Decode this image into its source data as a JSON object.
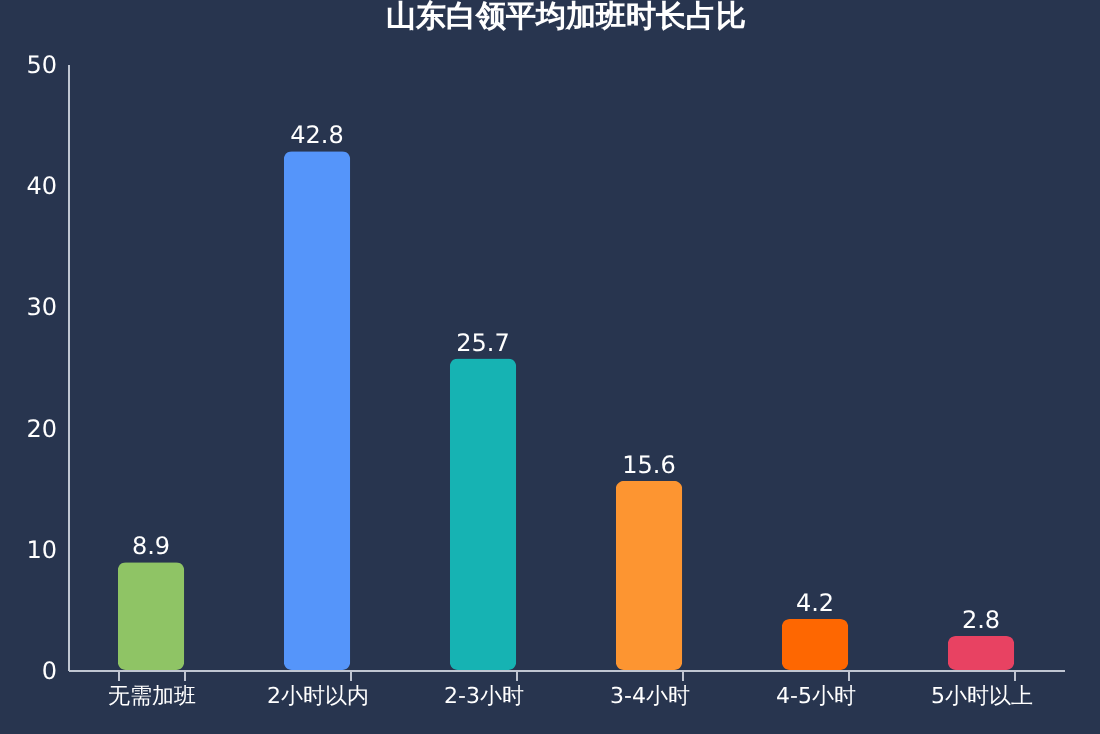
{
  "chart_data": {
    "type": "bar",
    "title": "山东白领平均加班时长占比",
    "categories": [
      "无需加班",
      "2小时以内",
      "2-3小时",
      "3-4小时",
      "4-5小时",
      "5小时以上"
    ],
    "values": [
      8.9,
      42.8,
      25.7,
      15.6,
      4.2,
      2.8
    ],
    "colors": [
      "#8fc465",
      "#5595fa",
      "#16b3b3",
      "#fd9531",
      "#fe6701",
      "#e84262"
    ],
    "ylim": [
      0,
      50
    ],
    "yticks": [
      0,
      10,
      20,
      30,
      40,
      50
    ],
    "grid": false,
    "data_labels": true
  }
}
